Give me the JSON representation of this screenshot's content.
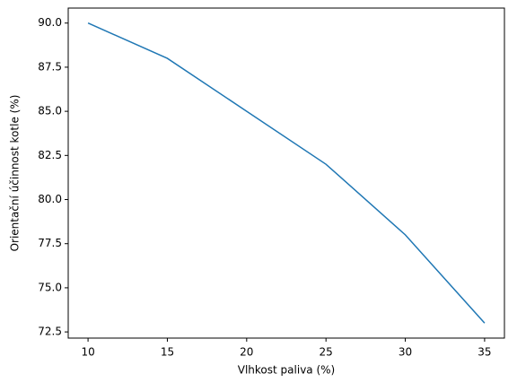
{
  "chart_data": {
    "type": "line",
    "x": [
      10,
      15,
      20,
      25,
      30,
      35
    ],
    "series": [
      {
        "color": "#1f77b4",
        "values": [
          90,
          88,
          85,
          82,
          78,
          73
        ]
      }
    ],
    "xlabel": "Vlhkost paliva (%)",
    "ylabel": "Orientační účinnost kotle (%)",
    "xlim": [
      8.75,
      36.25
    ],
    "xticks": [
      10,
      15,
      20,
      25,
      30,
      35
    ],
    "ylim": [
      72.15,
      90.85
    ],
    "yticks": [
      72.5,
      {
        "value": 75,
        "label": "75.0"
      },
      77.5,
      {
        "value": 80,
        "label": "80.0"
      },
      82.5,
      {
        "value": 85,
        "label": "85.0"
      },
      87.5,
      {
        "value": 90,
        "label": "90.0"
      }
    ]
  }
}
